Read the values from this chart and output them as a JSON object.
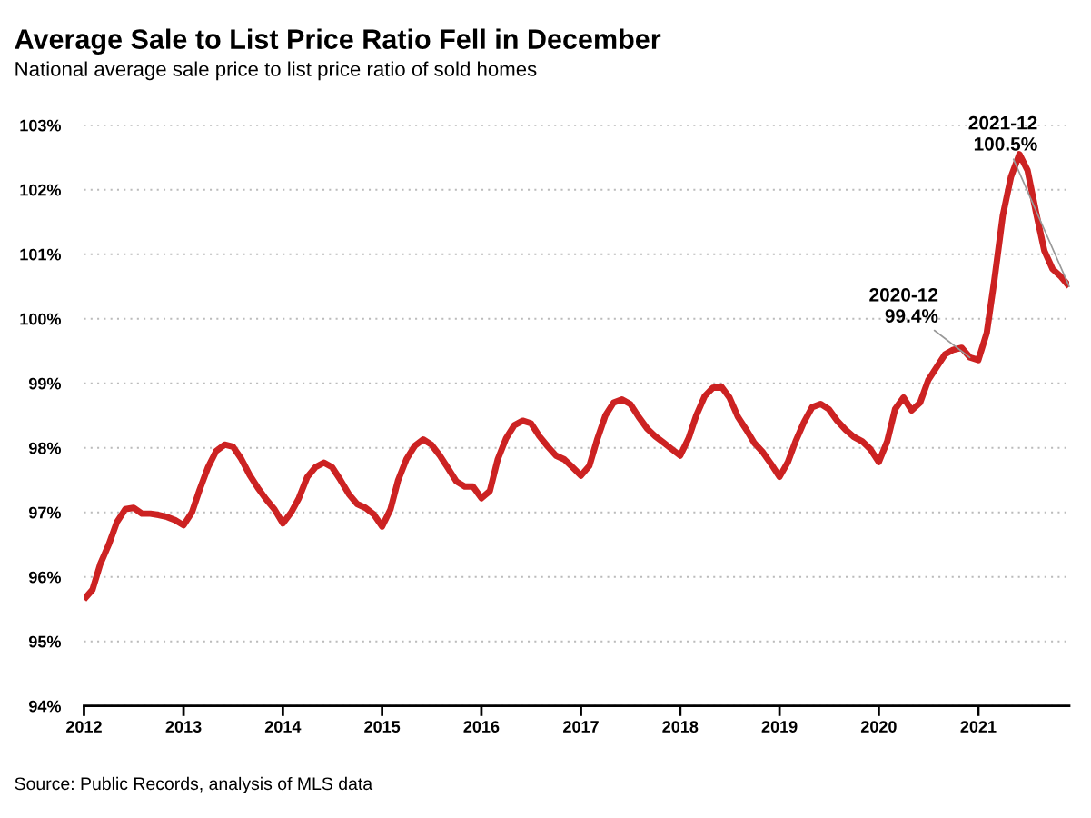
{
  "chart_data": {
    "type": "line",
    "title": "Average Sale to List Price Ratio Fell in December",
    "subtitle": "National average sale price to list price ratio of sold homes",
    "x": [
      "2012-01",
      "2012-02",
      "2012-03",
      "2012-04",
      "2012-05",
      "2012-06",
      "2012-07",
      "2012-08",
      "2012-09",
      "2012-10",
      "2012-11",
      "2012-12",
      "2013-01",
      "2013-02",
      "2013-03",
      "2013-04",
      "2013-05",
      "2013-06",
      "2013-07",
      "2013-08",
      "2013-09",
      "2013-10",
      "2013-11",
      "2013-12",
      "2014-01",
      "2014-02",
      "2014-03",
      "2014-04",
      "2014-05",
      "2014-06",
      "2014-07",
      "2014-08",
      "2014-09",
      "2014-10",
      "2014-11",
      "2014-12",
      "2015-01",
      "2015-02",
      "2015-03",
      "2015-04",
      "2015-05",
      "2015-06",
      "2015-07",
      "2015-08",
      "2015-09",
      "2015-10",
      "2015-11",
      "2015-12",
      "2016-01",
      "2016-02",
      "2016-03",
      "2016-04",
      "2016-05",
      "2016-06",
      "2016-07",
      "2016-08",
      "2016-09",
      "2016-10",
      "2016-11",
      "2016-12",
      "2017-01",
      "2017-02",
      "2017-03",
      "2017-04",
      "2017-05",
      "2017-06",
      "2017-07",
      "2017-08",
      "2017-09",
      "2017-10",
      "2017-11",
      "2017-12",
      "2018-01",
      "2018-02",
      "2018-03",
      "2018-04",
      "2018-05",
      "2018-06",
      "2018-07",
      "2018-08",
      "2018-09",
      "2018-10",
      "2018-11",
      "2018-12",
      "2019-01",
      "2019-02",
      "2019-03",
      "2019-04",
      "2019-05",
      "2019-06",
      "2019-07",
      "2019-08",
      "2019-09",
      "2019-10",
      "2019-11",
      "2019-12",
      "2020-01",
      "2020-02",
      "2020-03",
      "2020-04",
      "2020-05",
      "2020-06",
      "2020-07",
      "2020-08",
      "2020-09",
      "2020-10",
      "2020-11",
      "2020-12",
      "2021-01",
      "2021-02",
      "2021-03",
      "2021-04",
      "2021-05",
      "2021-06",
      "2021-07",
      "2021-08",
      "2021-09",
      "2021-10",
      "2021-11",
      "2021-12"
    ],
    "series": [
      {
        "color": "#cc2222",
        "values": [
          95.65,
          95.8,
          96.2,
          96.5,
          96.85,
          97.05,
          97.07,
          96.98,
          96.98,
          96.96,
          96.93,
          96.88,
          96.8,
          97.0,
          97.35,
          97.7,
          97.95,
          98.05,
          98.02,
          97.83,
          97.58,
          97.38,
          97.2,
          97.05,
          96.83,
          97.0,
          97.22,
          97.55,
          97.7,
          97.77,
          97.7,
          97.5,
          97.28,
          97.13,
          97.07,
          96.97,
          96.78,
          97.05,
          97.5,
          97.83,
          98.03,
          98.13,
          98.05,
          97.88,
          97.68,
          97.48,
          97.4,
          97.4,
          97.22,
          97.33,
          97.82,
          98.15,
          98.35,
          98.42,
          98.38,
          98.18,
          98.02,
          97.88,
          97.82,
          97.7,
          97.57,
          97.72,
          98.12,
          98.5,
          98.7,
          98.75,
          98.68,
          98.48,
          98.3,
          98.18,
          98.08,
          97.98,
          97.88,
          98.15,
          98.5,
          98.8,
          98.93,
          98.95,
          98.78,
          98.48,
          98.28,
          98.07,
          97.93,
          97.75,
          97.55,
          97.78,
          98.1,
          98.4,
          98.63,
          98.68,
          98.6,
          98.42,
          98.28,
          98.17,
          98.1,
          97.98,
          97.78,
          98.1,
          98.6,
          98.78,
          98.58,
          98.7,
          99.05,
          99.25,
          99.45,
          99.52,
          99.55,
          99.4,
          99.36,
          99.78,
          100.6,
          101.6,
          102.2,
          102.55,
          102.3,
          101.65,
          101.05,
          100.77,
          100.65,
          100.5
        ]
      }
    ],
    "xlim": [
      "2012-01",
      "2021-12"
    ],
    "xticks": [
      "2012",
      "2013",
      "2014",
      "2015",
      "2016",
      "2017",
      "2018",
      "2019",
      "2020",
      "2021"
    ],
    "ylim": [
      94,
      103
    ],
    "yticks": [
      {
        "value": 94,
        "label": "94%"
      },
      {
        "value": 95,
        "label": "95%"
      },
      {
        "value": 96,
        "label": "96%"
      },
      {
        "value": 97,
        "label": "97%"
      },
      {
        "value": 98,
        "label": "98%"
      },
      {
        "value": 99,
        "label": "99%"
      },
      {
        "value": 100,
        "label": "100%"
      },
      {
        "value": 101,
        "label": "101%"
      },
      {
        "value": 102,
        "label": "102%"
      },
      {
        "value": 103,
        "label": "103%"
      }
    ],
    "grid": "y",
    "line_style": "solid",
    "marker": "none",
    "annotations": [
      {
        "text": "2020-12\n99.4%",
        "x": "2020-12",
        "y": 99.4
      },
      {
        "text": "2021-12\n100.5%",
        "x": "2021-12",
        "y": 100.5
      },
      "Source: Public Records, analysis of MLS data"
    ]
  }
}
